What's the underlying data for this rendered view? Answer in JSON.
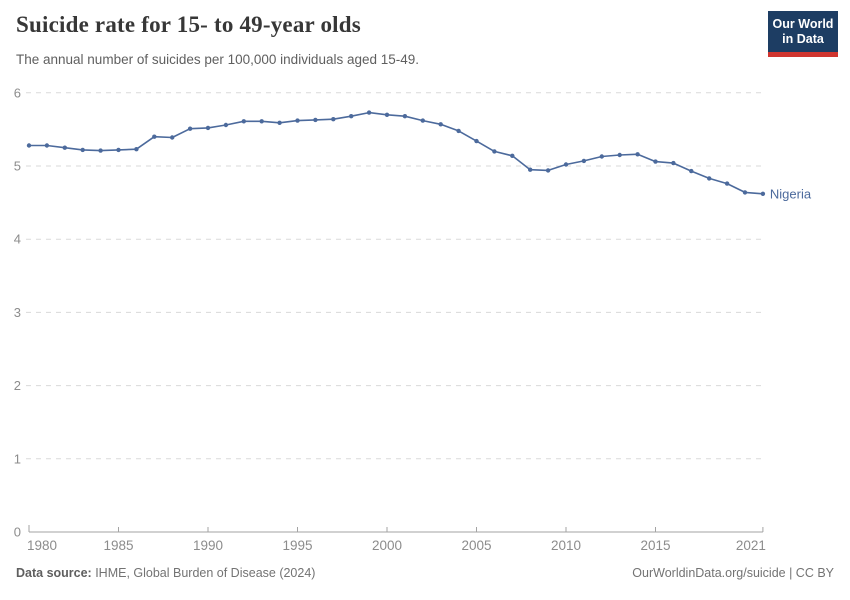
{
  "header": {
    "title": "Suicide rate for 15- to 49-year olds",
    "subtitle": "The annual number of suicides per 100,000 individuals aged 15-49.",
    "logo": {
      "line1": "Our World",
      "line2": "in Data",
      "bg_color": "#1d3d63",
      "accent_color": "#d0352f",
      "text_color": "#ffffff"
    }
  },
  "chart_data": {
    "type": "line",
    "title": "Suicide rate for 15- to 49-year olds",
    "subtitle": "The annual number of suicides per 100,000 individuals aged 15-49.",
    "x": [
      1980,
      1981,
      1982,
      1983,
      1984,
      1985,
      1986,
      1987,
      1988,
      1989,
      1990,
      1991,
      1992,
      1993,
      1994,
      1995,
      1996,
      1997,
      1998,
      1999,
      2000,
      2001,
      2002,
      2003,
      2004,
      2005,
      2006,
      2007,
      2008,
      2009,
      2010,
      2011,
      2012,
      2013,
      2014,
      2015,
      2016,
      2017,
      2018,
      2019,
      2020,
      2021
    ],
    "series": [
      {
        "name": "Nigeria",
        "color": "#4c6a9c",
        "values": [
          5.28,
          5.28,
          5.25,
          5.22,
          5.21,
          5.22,
          5.23,
          5.4,
          5.39,
          5.51,
          5.52,
          5.56,
          5.61,
          5.61,
          5.59,
          5.62,
          5.63,
          5.64,
          5.68,
          5.73,
          5.7,
          5.68,
          5.62,
          5.57,
          5.48,
          5.34,
          5.2,
          5.14,
          4.95,
          4.94,
          5.02,
          5.07,
          5.13,
          5.15,
          5.16,
          5.06,
          5.04,
          4.93,
          4.83,
          4.76,
          4.64,
          4.62
        ]
      }
    ],
    "xlabel": "",
    "ylabel": "",
    "ylim": [
      0,
      6
    ],
    "yticks": [
      0,
      1,
      2,
      3,
      4,
      5,
      6
    ],
    "xticks": [
      1980,
      1985,
      1990,
      1995,
      2000,
      2005,
      2010,
      2015,
      2021
    ],
    "grid": "dashed-horizontal",
    "legend_position": "end-of-line-label",
    "markers": true
  },
  "footer": {
    "datasource_label": "Data source:",
    "datasource_value": " IHME, Global Burden of Disease (2024)",
    "credit": "OurWorldinData.org/suicide | CC BY"
  },
  "colors": {
    "line": "#4c6a9c",
    "grid": "#dadada",
    "axis": "#a3a3a3",
    "tick_label": "#8c8c8c",
    "title": "#373737",
    "subtitle": "#5f5f5f",
    "footer": "#737373"
  }
}
